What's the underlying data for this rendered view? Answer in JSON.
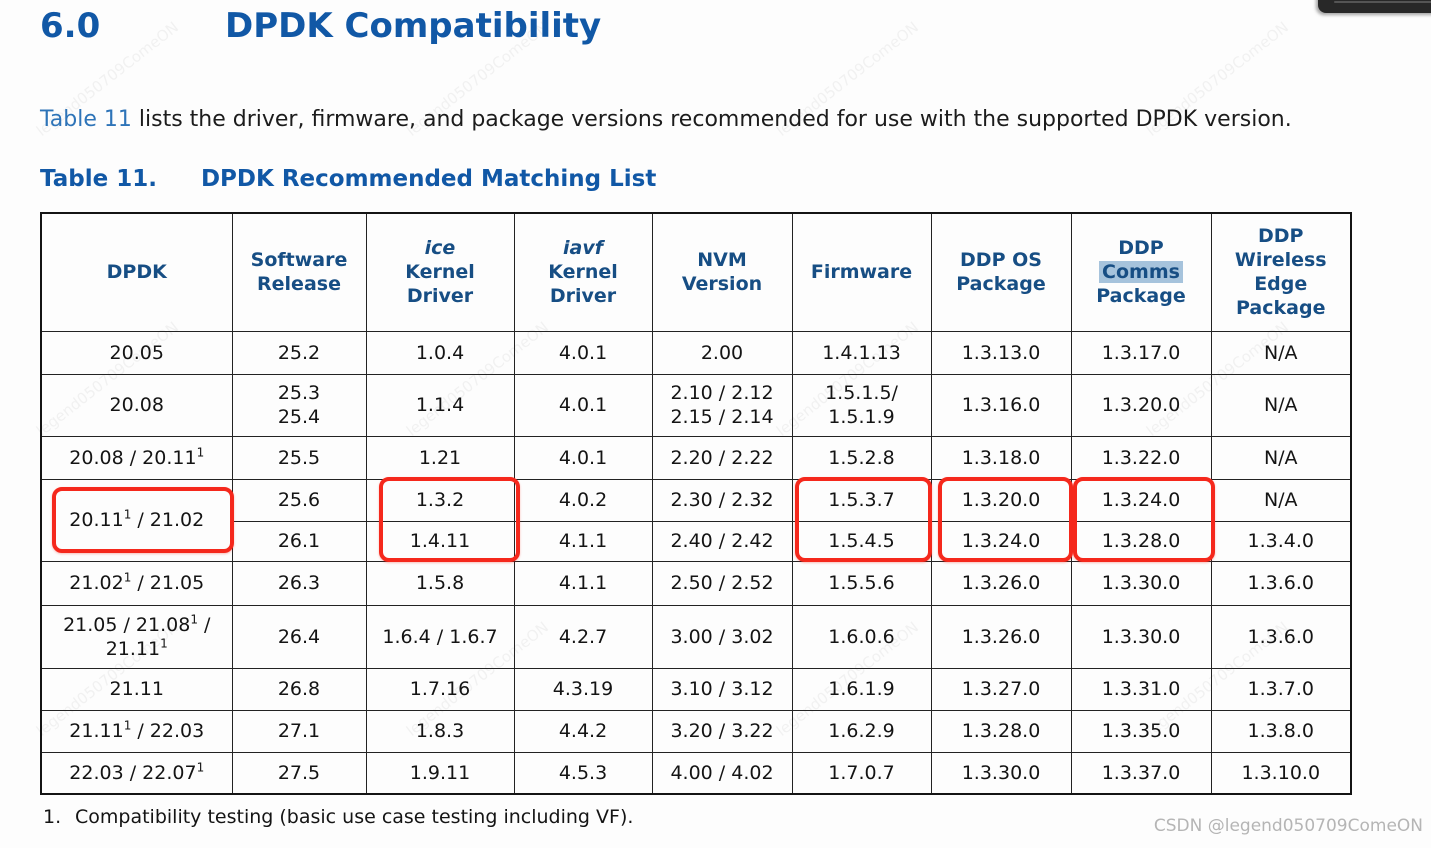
{
  "heading": {
    "number": "6.0",
    "title": "DPDK Compatibility"
  },
  "intro": {
    "link_text": "Table 11",
    "text_after_link": " lists the driver, firmware, and package versions recommended for use with the supported DPDK version."
  },
  "caption": {
    "label": "Table 11.",
    "title": "DPDK Recommended Matching List"
  },
  "table": {
    "columns": [
      {
        "lines": [
          {
            "text": "DPDK"
          }
        ]
      },
      {
        "lines": [
          {
            "text": "Software"
          },
          {
            "text": "Release"
          }
        ]
      },
      {
        "lines": [
          {
            "text": "ice",
            "italic": true
          },
          {
            "text": "Kernel"
          },
          {
            "text": "Driver"
          }
        ]
      },
      {
        "lines": [
          {
            "text": "iavf",
            "italic": true
          },
          {
            "text": "Kernel"
          },
          {
            "text": "Driver"
          }
        ]
      },
      {
        "lines": [
          {
            "text": "NVM"
          },
          {
            "text": "Version"
          }
        ]
      },
      {
        "lines": [
          {
            "text": "Firmware"
          }
        ]
      },
      {
        "lines": [
          {
            "text": "DDP OS"
          },
          {
            "text": "Package"
          }
        ]
      },
      {
        "lines": [
          {
            "text": "DDP"
          },
          {
            "text": "Comms",
            "highlight": true
          },
          {
            "text": "Package"
          }
        ]
      },
      {
        "lines": [
          {
            "text": "DDP"
          },
          {
            "text": "Wireless"
          },
          {
            "text": "Edge"
          },
          {
            "text": "Package"
          }
        ]
      }
    ],
    "rows": [
      [
        {
          "lines": [
            "20.05"
          ]
        },
        {
          "lines": [
            "25.2"
          ]
        },
        {
          "lines": [
            "1.0.4"
          ]
        },
        {
          "lines": [
            "4.0.1"
          ]
        },
        {
          "lines": [
            "2.00"
          ]
        },
        {
          "lines": [
            "1.4.1.13"
          ]
        },
        {
          "lines": [
            "1.3.13.0"
          ]
        },
        {
          "lines": [
            "1.3.17.0"
          ]
        },
        {
          "lines": [
            "N/A"
          ]
        }
      ],
      [
        {
          "lines": [
            "20.08"
          ]
        },
        {
          "lines": [
            "25.3",
            "25.4"
          ]
        },
        {
          "lines": [
            "1.1.4"
          ]
        },
        {
          "lines": [
            "4.0.1"
          ]
        },
        {
          "lines": [
            "2.10 / 2.12",
            "2.15 / 2.14"
          ]
        },
        {
          "lines": [
            "1.5.1.5/",
            "1.5.1.9"
          ]
        },
        {
          "lines": [
            "1.3.16.0"
          ]
        },
        {
          "lines": [
            "1.3.20.0"
          ]
        },
        {
          "lines": [
            "N/A"
          ]
        }
      ],
      [
        {
          "lines": [
            "20.08 / 20.11{1}"
          ]
        },
        {
          "lines": [
            "25.5"
          ]
        },
        {
          "lines": [
            "1.21"
          ]
        },
        {
          "lines": [
            "4.0.1"
          ]
        },
        {
          "lines": [
            "2.20 / 2.22"
          ]
        },
        {
          "lines": [
            "1.5.2.8"
          ]
        },
        {
          "lines": [
            "1.3.18.0"
          ]
        },
        {
          "lines": [
            "1.3.22.0"
          ]
        },
        {
          "lines": [
            "N/A"
          ]
        }
      ],
      [
        {
          "lines": [
            "20.11{1} / 21.02"
          ],
          "rowspan": 2
        },
        {
          "lines": [
            "25.6"
          ]
        },
        {
          "lines": [
            "1.3.2"
          ]
        },
        {
          "lines": [
            "4.0.2"
          ]
        },
        {
          "lines": [
            "2.30 / 2.32"
          ]
        },
        {
          "lines": [
            "1.5.3.7"
          ]
        },
        {
          "lines": [
            "1.3.20.0"
          ]
        },
        {
          "lines": [
            "1.3.24.0"
          ]
        },
        {
          "lines": [
            "N/A"
          ]
        }
      ],
      [
        {
          "lines": [
            "26.1"
          ]
        },
        {
          "lines": [
            "1.4.11"
          ]
        },
        {
          "lines": [
            "4.1.1"
          ]
        },
        {
          "lines": [
            "2.40 / 2.42"
          ]
        },
        {
          "lines": [
            "1.5.4.5"
          ]
        },
        {
          "lines": [
            "1.3.24.0"
          ]
        },
        {
          "lines": [
            "1.3.28.0"
          ]
        },
        {
          "lines": [
            "1.3.4.0"
          ]
        }
      ],
      [
        {
          "lines": [
            "21.02{1} / 21.05"
          ]
        },
        {
          "lines": [
            "26.3"
          ]
        },
        {
          "lines": [
            "1.5.8"
          ]
        },
        {
          "lines": [
            "4.1.1"
          ]
        },
        {
          "lines": [
            "2.50 / 2.52"
          ]
        },
        {
          "lines": [
            "1.5.5.6"
          ]
        },
        {
          "lines": [
            "1.3.26.0"
          ]
        },
        {
          "lines": [
            "1.3.30.0"
          ]
        },
        {
          "lines": [
            "1.3.6.0"
          ]
        }
      ],
      [
        {
          "lines": [
            "21.05 / 21.08{1} /",
            "21.11{1}"
          ]
        },
        {
          "lines": [
            "26.4"
          ]
        },
        {
          "lines": [
            "1.6.4 / 1.6.7"
          ]
        },
        {
          "lines": [
            "4.2.7"
          ]
        },
        {
          "lines": [
            "3.00 / 3.02"
          ]
        },
        {
          "lines": [
            "1.6.0.6"
          ]
        },
        {
          "lines": [
            "1.3.26.0"
          ]
        },
        {
          "lines": [
            "1.3.30.0"
          ]
        },
        {
          "lines": [
            "1.3.6.0"
          ]
        }
      ],
      [
        {
          "lines": [
            "21.11"
          ]
        },
        {
          "lines": [
            "26.8"
          ]
        },
        {
          "lines": [
            "1.7.16"
          ]
        },
        {
          "lines": [
            "4.3.19"
          ]
        },
        {
          "lines": [
            "3.10 / 3.12"
          ]
        },
        {
          "lines": [
            "1.6.1.9"
          ]
        },
        {
          "lines": [
            "1.3.27.0"
          ]
        },
        {
          "lines": [
            "1.3.31.0"
          ]
        },
        {
          "lines": [
            "1.3.7.0"
          ]
        }
      ],
      [
        {
          "lines": [
            "21.11{1} / 22.03"
          ]
        },
        {
          "lines": [
            "27.1"
          ]
        },
        {
          "lines": [
            "1.8.3"
          ]
        },
        {
          "lines": [
            "4.4.2"
          ]
        },
        {
          "lines": [
            "3.20 / 3.22"
          ]
        },
        {
          "lines": [
            "1.6.2.9"
          ]
        },
        {
          "lines": [
            "1.3.28.0"
          ]
        },
        {
          "lines": [
            "1.3.35.0"
          ]
        },
        {
          "lines": [
            "1.3.8.0"
          ]
        }
      ],
      [
        {
          "lines": [
            "22.03 / 22.07{1}"
          ]
        },
        {
          "lines": [
            "27.5"
          ]
        },
        {
          "lines": [
            "1.9.11"
          ]
        },
        {
          "lines": [
            "4.5.3"
          ]
        },
        {
          "lines": [
            "4.00 / 4.02"
          ]
        },
        {
          "lines": [
            "1.7.0.7"
          ]
        },
        {
          "lines": [
            "1.3.30.0"
          ]
        },
        {
          "lines": [
            "1.3.37.0"
          ]
        },
        {
          "lines": [
            "1.3.10.0"
          ]
        }
      ]
    ]
  },
  "footnote": {
    "number": "1.",
    "text": "Compatibility testing (basic use case testing including VF)."
  },
  "watermark": "CSDN @legend050709ComeON",
  "watermark_tile": "legend050709ComeON",
  "colors": {
    "heading_blue": "#1158a6",
    "header_navy": "#174e84",
    "link_blue": "#2e74b8",
    "comms_highlight": "#a6c3dc",
    "annotation_red": "#f5281c"
  }
}
